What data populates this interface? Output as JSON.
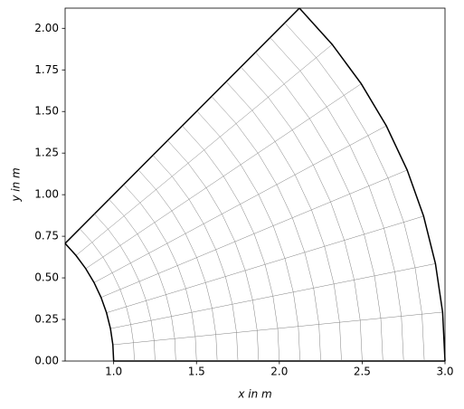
{
  "chart_data": {
    "type": "mesh",
    "xlabel": "x in m",
    "ylabel": "y in m",
    "radii": [
      1.0,
      1.125,
      1.25,
      1.375,
      1.5,
      1.625,
      1.75,
      1.875,
      2.0,
      2.125,
      2.25,
      2.375,
      2.5,
      2.625,
      2.75,
      2.875,
      3.0
    ],
    "angles": [
      0,
      5.625,
      11.25,
      16.875,
      22.5,
      28.125,
      33.75,
      39.375,
      45
    ],
    "xlim": [
      0.7071,
      3.0
    ],
    "ylim": [
      0,
      2.1213
    ],
    "xticks": [
      {
        "value": 1.0,
        "label": "1.0"
      },
      {
        "value": 1.5,
        "label": "1.5"
      },
      {
        "value": 2.0,
        "label": "2.0"
      },
      {
        "value": 2.5,
        "label": "2.5"
      },
      {
        "value": 3.0,
        "label": "3.0"
      }
    ],
    "yticks": [
      {
        "value": 0,
        "label": "0.00"
      },
      {
        "value": 0.25,
        "label": "0.25"
      },
      {
        "value": 0.5,
        "label": "0.50"
      },
      {
        "value": 0.75,
        "label": "0.75"
      },
      {
        "value": 1.0,
        "label": "1.00"
      },
      {
        "value": 1.25,
        "label": "1.25"
      },
      {
        "value": 1.5,
        "label": "1.50"
      },
      {
        "value": 1.75,
        "label": "1.75"
      },
      {
        "value": 2.0,
        "label": "2.00"
      }
    ],
    "boundary_color": "#000000",
    "mesh_color": "#808080"
  }
}
